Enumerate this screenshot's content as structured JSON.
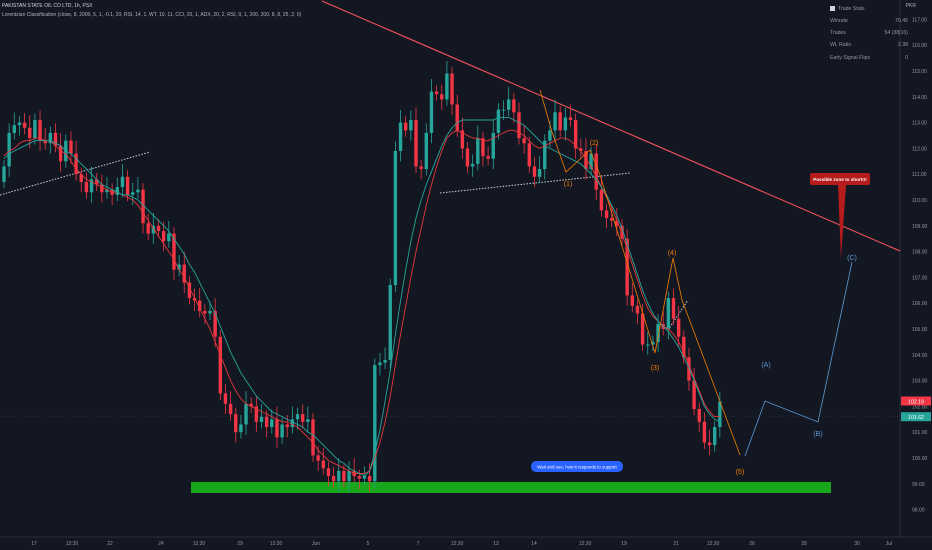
{
  "header": {
    "symbol_line": "PAKISTAN STATE OIL CO LTD, 1h, PSX",
    "indicator_line": "Lorentzian Classification (close, 8, 2000, 5, 1, -0.1, 20, RSI, 14, 1, WT, 10, 11, CCI, 20, 1, ADX, 20, 2, RSI, 9, 1, 200, 200, 8, 8, 25, 2, 0)",
    "currency": "PKR"
  },
  "trade_stats": {
    "title": "Trade Stats",
    "rows": [
      {
        "label": "Winrate",
        "value": "70.45"
      },
      {
        "label": "Trades",
        "value": "54 (38|16)"
      },
      {
        "label": "WL Ratio",
        "value": "2.38"
      },
      {
        "label": "Early Signal Flips",
        "value": "0"
      }
    ]
  },
  "annotations": {
    "short_zone": "Possible zone to short!!!",
    "support_note": "Wait and see, how it responds to support",
    "wave_labels": [
      "(1)",
      "(2)",
      "(3)",
      "(4)",
      "(5)",
      "(A)",
      "(B)",
      "(C)"
    ]
  },
  "price_tags": {
    "last": "102.19",
    "ma": "101.62"
  },
  "colors": {
    "bg": "#131722",
    "up": "#26a69a",
    "down": "#f23645",
    "ma_red": "#e5383b",
    "ma_green": "#26a69a",
    "trend": "#f7525f",
    "support_zone": "#18a61a",
    "wave": "#f57c00",
    "projection": "#5b9bd5",
    "label_red": "#b71c1c",
    "label_blue": "#2962ff"
  },
  "chart_data": {
    "type": "candlestick",
    "y_range": [
      97,
      117.5
    ],
    "y_ticks": [
      "98.00",
      "99.00",
      "100.00",
      "101.00",
      "102.00",
      "103.00",
      "104.00",
      "105.00",
      "106.00",
      "107.00",
      "108.00",
      "109.00",
      "110.00",
      "111.00",
      "112.00",
      "113.00",
      "114.00",
      "115.00",
      "116.00",
      "117.00"
    ],
    "x_ticks": [
      "17",
      "12:30",
      "22",
      "24",
      "12:30",
      "29",
      "12:30",
      "Jun",
      "5",
      "7",
      "12:30",
      "12",
      "14",
      "12:30",
      "19",
      "21",
      "12:30",
      "26",
      "28",
      "30",
      "Jul"
    ],
    "close": [
      111.3,
      112.6,
      112.9,
      113.0,
      112.8,
      112.4,
      113.1,
      112.3,
      112.2,
      112.6,
      112.1,
      111.5,
      112.3,
      111.8,
      111.0,
      110.7,
      110.3,
      110.8,
      110.6,
      110.3,
      110.4,
      110.2,
      110.5,
      110.9,
      110.2,
      110.3,
      110.4,
      109.1,
      108.7,
      109.0,
      108.8,
      108.4,
      108.7,
      107.3,
      107.5,
      106.8,
      106.2,
      106.1,
      105.7,
      105.6,
      105.7,
      104.7,
      102.5,
      102.1,
      101.7,
      101.0,
      101.3,
      102.1,
      102.0,
      101.4,
      101.6,
      101.2,
      101.5,
      100.8,
      101.3,
      101.2,
      101.5,
      101.7,
      101.4,
      101.5,
      100.1,
      99.9,
      99.6,
      99.3,
      99.1,
      99.5,
      99.1,
      99.5,
      99.3,
      99.2,
      99.3,
      99.1,
      103.6,
      103.7,
      103.8,
      106.7,
      111.9,
      113.0,
      112.7,
      113.1,
      111.3,
      111.2,
      112.6,
      114.2,
      114.1,
      113.9,
      114.9,
      113.7,
      112.7,
      112.0,
      111.3,
      111.4,
      112.4,
      111.7,
      111.6,
      112.6,
      113.5,
      113.5,
      113.9,
      113.4,
      112.4,
      112.2,
      111.3,
      110.9,
      111.2,
      112.3,
      112.7,
      113.4,
      112.7,
      113.2,
      113.1,
      112.0,
      111.9,
      111.2,
      111.8,
      110.4,
      109.6,
      109.3,
      109.2,
      109.0,
      108.5,
      106.3,
      105.9,
      105.6,
      104.4,
      104.4,
      104.5,
      105.2,
      105.0,
      106.2,
      105.4,
      104.7,
      103.9,
      103.0,
      101.9,
      101.4,
      100.6,
      100.5,
      101.2,
      102.19
    ],
    "ma_red": [
      111.7,
      111.9,
      112.0,
      112.2,
      112.3,
      112.3,
      112.4,
      112.4,
      112.3,
      112.3,
      112.1,
      111.9,
      111.8,
      111.5,
      111.2,
      111.0,
      110.8,
      110.7,
      110.6,
      110.5,
      110.4,
      110.3,
      110.3,
      110.2,
      110.1,
      110.0,
      109.8,
      109.5,
      109.2,
      108.9,
      108.6,
      108.3,
      108.0,
      107.7,
      107.3,
      107.0,
      106.6,
      106.2,
      105.8,
      105.4,
      105.0,
      104.5,
      104.0,
      103.5,
      103.0,
      102.6,
      102.3,
      102.1,
      102.0,
      101.9,
      101.8,
      101.7,
      101.6,
      101.5,
      101.4,
      101.4,
      101.3,
      101.2,
      101.0,
      100.8,
      100.6,
      100.3,
      100.1,
      99.9,
      99.8,
      99.7,
      99.6,
      99.5,
      99.4,
      99.4,
      99.4,
      99.5,
      100.0,
      100.6,
      101.4,
      102.4,
      103.6,
      104.8,
      105.9,
      107.0,
      108.0,
      108.9,
      109.8,
      110.6,
      111.3,
      111.9,
      112.4,
      112.6,
      112.7,
      112.6,
      112.5,
      112.4,
      112.4,
      112.3,
      112.3,
      112.4,
      112.5,
      112.6,
      112.7,
      112.7,
      112.6,
      112.5,
      112.3,
      112.1,
      112.0,
      112.1,
      112.2,
      112.3,
      112.4,
      112.4,
      112.3,
      112.1,
      111.9,
      111.6,
      111.3,
      110.9,
      110.5,
      110.1,
      109.7,
      109.2,
      108.7,
      108.1,
      107.5,
      106.9,
      106.3,
      105.8,
      105.5,
      105.3,
      105.1,
      105.0,
      104.8,
      104.5,
      104.1,
      103.6,
      103.1,
      102.6,
      102.1,
      101.8,
      101.6,
      101.62
    ],
    "ma_green": [
      111.6,
      111.8,
      111.9,
      112.0,
      112.1,
      112.2,
      112.3,
      112.3,
      112.3,
      112.3,
      112.2,
      112.1,
      111.9,
      111.8,
      111.6,
      111.4,
      111.2,
      111.0,
      110.8,
      110.6,
      110.5,
      110.4,
      110.3,
      110.2,
      110.2,
      110.1,
      110.0,
      109.8,
      109.6,
      109.4,
      109.2,
      109.0,
      108.8,
      108.5,
      108.2,
      107.9,
      107.5,
      107.2,
      106.8,
      106.4,
      106.0,
      105.6,
      105.1,
      104.6,
      104.1,
      103.7,
      103.3,
      103.0,
      102.7,
      102.4,
      102.2,
      102.0,
      101.8,
      101.7,
      101.6,
      101.5,
      101.4,
      101.3,
      101.2,
      101.0,
      100.9,
      100.7,
      100.5,
      100.3,
      100.1,
      99.9,
      99.8,
      99.6,
      99.5,
      99.4,
      99.3,
      99.5,
      100.2,
      101.1,
      102.2,
      103.4,
      104.8,
      106.1,
      107.3,
      108.4,
      109.3,
      110.0,
      110.6,
      111.1,
      111.6,
      112.1,
      112.5,
      112.8,
      113.0,
      113.1,
      113.1,
      113.1,
      113.1,
      113.1,
      113.1,
      113.1,
      113.2,
      113.2,
      113.2,
      113.1,
      113.0,
      112.9,
      112.7,
      112.5,
      112.3,
      112.1,
      112.0,
      111.9,
      111.8,
      111.7,
      111.6,
      111.5,
      111.4,
      111.2,
      111.0,
      110.8,
      110.5,
      110.2,
      109.8,
      109.4,
      108.9,
      108.3,
      107.7,
      107.1,
      106.5,
      106.0,
      105.6,
      105.3,
      105.1,
      104.9,
      104.6,
      104.3,
      103.9,
      103.5,
      103.0,
      102.5,
      102.0,
      101.7,
      101.5,
      101.4
    ],
    "lines": [
      {
        "name": "trendline",
        "x": [
          0,
          174
        ],
        "y": [
          118.5,
          107.6
        ]
      },
      {
        "name": "support_zone",
        "x": [
          40,
          169
        ],
        "y": [
          99.0,
          98.6
        ]
      }
    ],
    "wave_points": {
      "(1)": 110.7,
      "(2)": 111.8,
      "(3)": 103.9,
      "(4)": 107.4,
      "(5)": 100.2,
      "(A)": 103.2,
      "(B)": 101.2,
      "(C)": 107.6
    }
  }
}
